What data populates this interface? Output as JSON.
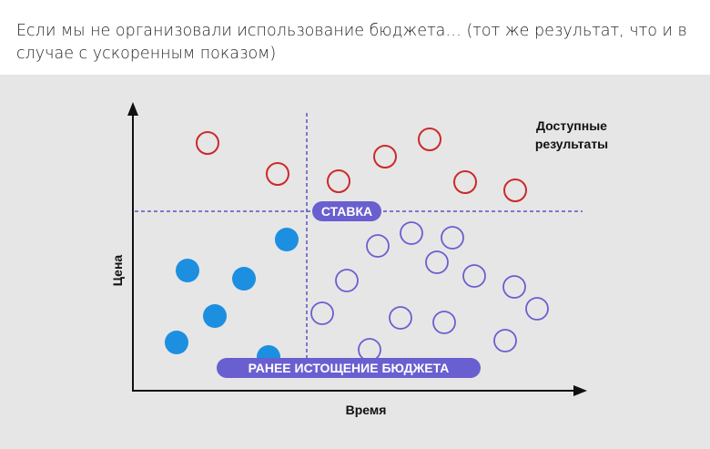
{
  "caption": "Если мы не организовали использование бюджета… (тот же результат, что и в случае с ускоренным показом)",
  "diagram": {
    "y_axis_label": "Цена",
    "x_axis_label": "Время",
    "bid_label": "СТАВКА",
    "budget_label": "РАНЕЕ ИСТОЩЕНИЕ БЮДЖЕТА",
    "available_results_line1": "Доступные",
    "available_results_line2": "результаты"
  },
  "colors": {
    "panel": "#e6e6e6",
    "red_outline": "#cc2a2a",
    "blue_fill": "#1c8fe0",
    "purple_outline": "#6a5fd0",
    "pill": "#6a5fd0",
    "dashed_line": "#5b52c4"
  }
}
